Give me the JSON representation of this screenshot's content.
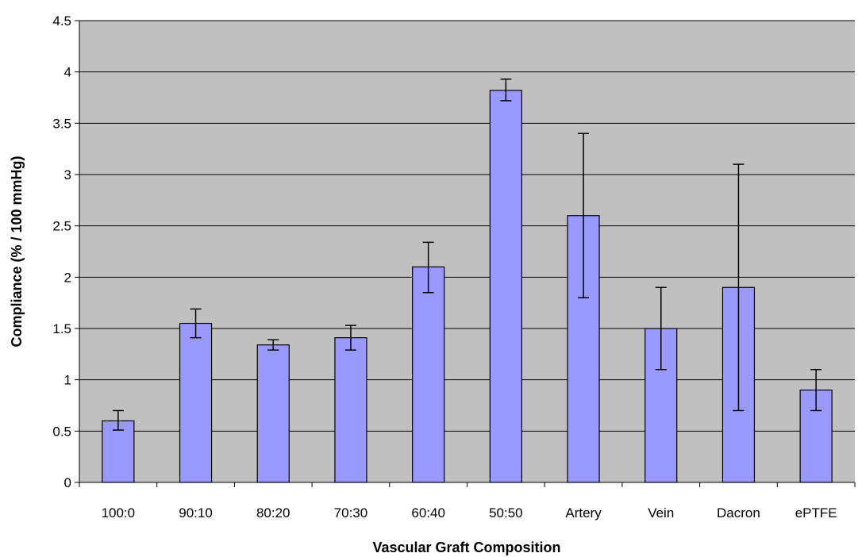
{
  "chart_data": {
    "type": "bar",
    "title": "",
    "xlabel": "Vascular Graft Composition",
    "ylabel": "Compliance (% / 100 mmHg)",
    "ylim": [
      0,
      4.5
    ],
    "ytick_step": 0.5,
    "yticks": [
      "0",
      "0.5",
      "1",
      "1.5",
      "2",
      "2.5",
      "3",
      "3.5",
      "4",
      "4.5"
    ],
    "grid": true,
    "legend": "none",
    "categories": [
      "100:0",
      "90:10",
      "80:20",
      "70:30",
      "60:40",
      "50:50",
      "Artery",
      "Vein",
      "Dacron",
      "ePTFE"
    ],
    "values": [
      0.6,
      1.55,
      1.34,
      1.41,
      2.1,
      3.82,
      2.6,
      1.5,
      1.9,
      0.9
    ],
    "error_low": [
      0.51,
      1.41,
      1.29,
      1.29,
      1.85,
      3.72,
      1.8,
      1.1,
      0.7,
      0.7
    ],
    "error_high": [
      0.7,
      1.69,
      1.39,
      1.53,
      2.34,
      3.93,
      3.4,
      1.9,
      3.1,
      1.1
    ],
    "colors": {
      "bar": "#9999ff",
      "bar_stroke": "#000000",
      "plot_background": "#c0c0c0",
      "gridline": "#000000",
      "error_bar": "#000000"
    }
  }
}
